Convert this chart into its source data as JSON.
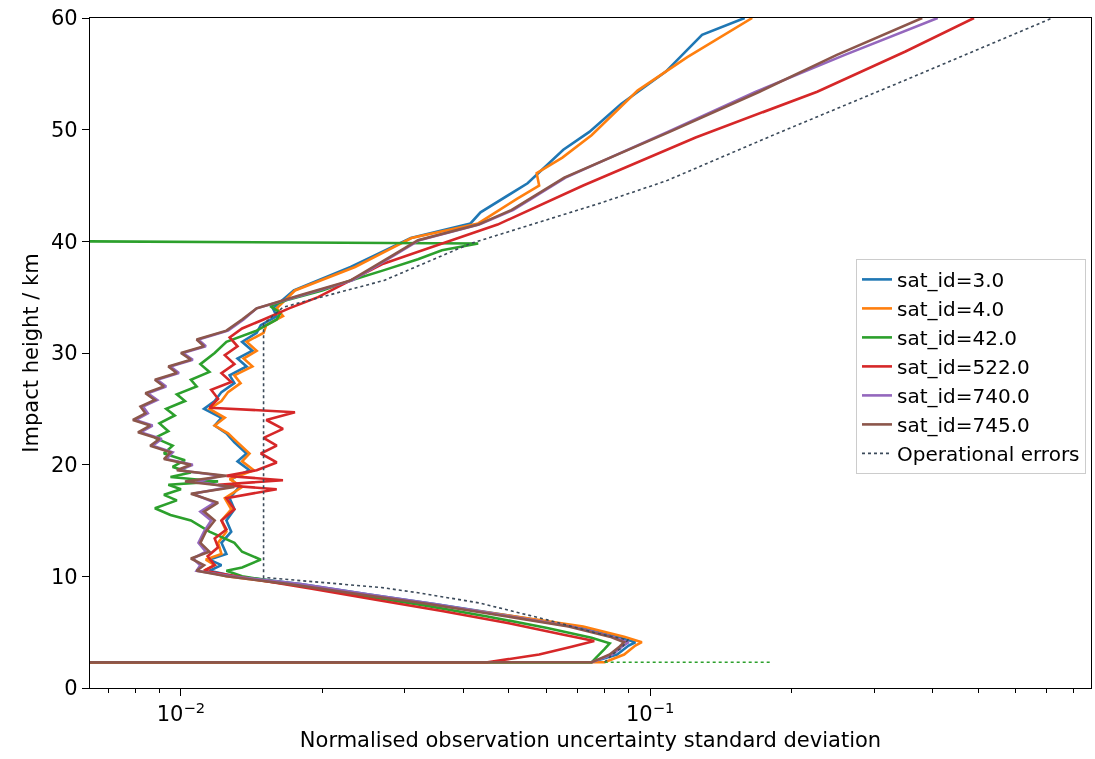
{
  "chart_data": {
    "type": "line",
    "xlabel": "Normalised observation uncertainty standard deviation",
    "ylabel": "Impact height / km",
    "log": "x",
    "xlim": [
      0.0064,
      0.87
    ],
    "ylim": [
      0,
      60
    ],
    "xticks": [
      {
        "value": 0.007,
        "label": null
      },
      {
        "value": 0.008,
        "label": null
      },
      {
        "value": 0.009,
        "label": null
      },
      {
        "value": 0.01,
        "label": "10$^{−2}$"
      },
      {
        "value": 0.02,
        "label": null
      },
      {
        "value": 0.03,
        "label": null
      },
      {
        "value": 0.04,
        "label": null
      },
      {
        "value": 0.05,
        "label": null
      },
      {
        "value": 0.06,
        "label": null
      },
      {
        "value": 0.07,
        "label": null
      },
      {
        "value": 0.08,
        "label": null
      },
      {
        "value": 0.09,
        "label": null
      },
      {
        "value": 0.1,
        "label": "10$^{−1}$"
      },
      {
        "value": 0.2,
        "label": null
      },
      {
        "value": 0.3,
        "label": null
      },
      {
        "value": 0.4,
        "label": null
      },
      {
        "value": 0.5,
        "label": null
      },
      {
        "value": 0.6,
        "label": null
      },
      {
        "value": 0.7,
        "label": null
      },
      {
        "value": 0.8,
        "label": null
      }
    ],
    "yticks": [
      0,
      10,
      20,
      30,
      40,
      50,
      60
    ],
    "grid": false,
    "legend": "right",
    "marker": "none",
    "series": [
      {
        "name": "sat_id=3.0",
        "color": "#1f77b4",
        "line_style": "solid",
        "x": [
          0.0064,
          0.075,
          0.085,
          0.09,
          0.093,
          0.085,
          0.07,
          0.05,
          0.035,
          0.025,
          0.018,
          0.013,
          0.0115,
          0.0122,
          0.0115,
          0.0125,
          0.0122,
          0.0128,
          0.0125,
          0.013,
          0.0127,
          0.0133,
          0.0128,
          0.014,
          0.0132,
          0.0138,
          0.013,
          0.0125,
          0.0118,
          0.0122,
          0.0112,
          0.0118,
          0.0122,
          0.013,
          0.0127,
          0.0138,
          0.0132,
          0.0142,
          0.0135,
          0.0145,
          0.0148,
          0.016,
          0.0157,
          0.0174,
          0.023,
          0.0309,
          0.0414,
          0.0435,
          0.0548,
          0.0653,
          0.0742,
          0.0867,
          0.108,
          0.129,
          0.159
        ],
        "values": [
          2.3,
          2.3,
          3.0,
          3.8,
          4.1,
          4.6,
          5.5,
          6.5,
          7.5,
          8.4,
          9.3,
          10.0,
          10.5,
          11,
          11.5,
          12,
          13,
          14,
          15,
          16,
          17,
          18,
          18.7,
          19.5,
          20.3,
          21,
          22,
          22.8,
          23.5,
          24.2,
          25,
          25.7,
          26.5,
          27.3,
          28,
          28.8,
          29.5,
          30.2,
          31,
          31.8,
          32.5,
          33.3,
          34,
          35.6,
          37.7,
          40.3,
          41.6,
          42.6,
          45.2,
          48.2,
          49.8,
          52.3,
          55.2,
          58.5,
          60
        ]
      },
      {
        "name": "sat_id=4.0",
        "color": "#ff7f0e",
        "line_style": "solid",
        "x": [
          0.0064,
          0.08,
          0.088,
          0.093,
          0.096,
          0.088,
          0.072,
          0.05,
          0.034,
          0.024,
          0.017,
          0.0125,
          0.0112,
          0.0118,
          0.0113,
          0.0122,
          0.012,
          0.0125,
          0.0122,
          0.0128,
          0.0124,
          0.0135,
          0.0127,
          0.0143,
          0.0135,
          0.014,
          0.0132,
          0.0126,
          0.0118,
          0.0124,
          0.0115,
          0.0122,
          0.0126,
          0.0134,
          0.013,
          0.0142,
          0.0136,
          0.0145,
          0.0138,
          0.015,
          0.0152,
          0.0165,
          0.016,
          0.0175,
          0.0235,
          0.031,
          0.043,
          0.052,
          0.058,
          0.0573,
          0.065,
          0.075,
          0.094,
          0.12,
          0.165
        ],
        "values": [
          2.3,
          2.3,
          3.0,
          3.8,
          4.1,
          4.6,
          5.5,
          6.5,
          7.5,
          8.4,
          9.3,
          10.0,
          10.5,
          11,
          11.5,
          12,
          13,
          14,
          15,
          16,
          17,
          18,
          18.7,
          19.5,
          20.3,
          21,
          22,
          22.8,
          23.5,
          24.2,
          25,
          25.7,
          26.5,
          27.3,
          28,
          28.8,
          29.5,
          30.2,
          31,
          31.8,
          32.5,
          33.3,
          34,
          35.6,
          37.7,
          40.3,
          41.6,
          43.8,
          45,
          46.1,
          47.5,
          49.5,
          53.5,
          56.5,
          60
        ]
      },
      {
        "name": "sat_id=42.0",
        "color": "#2ca02c",
        "line_style": "solid",
        "x": [
          0.0064,
          0.075,
          0.08,
          0.082,
          0.075,
          0.06,
          0.045,
          0.033,
          0.024,
          0.018,
          0.0135,
          0.0125,
          0.0135,
          0.0148,
          0.0135,
          0.013,
          0.0115,
          0.0105,
          0.0095,
          0.0088,
          0.0098,
          0.0092,
          0.01,
          0.0094,
          0.012,
          0.0095,
          0.0105,
          0.0096,
          0.0102,
          0.0092,
          0.0096,
          0.0088,
          0.0094,
          0.009,
          0.0097,
          0.0093,
          0.0102,
          0.0098,
          0.0108,
          0.0105,
          0.0115,
          0.011,
          0.0118,
          0.0125,
          0.0145,
          0.016,
          0.0163,
          0.0155,
          0.017,
          0.02,
          0.023,
          0.027,
          0.032,
          0.036,
          0.043,
          0.0064
        ],
        "values": [
          2.3,
          2.3,
          3.5,
          4.0,
          4.5,
          5.4,
          6.4,
          7.4,
          8.3,
          9.2,
          10.0,
          10.5,
          10.8,
          11.5,
          12.2,
          13,
          14,
          15,
          15.5,
          16.1,
          16.8,
          17.3,
          17.8,
          18.2,
          18.5,
          18.9,
          19.3,
          19.8,
          20.4,
          21,
          21.7,
          22.4,
          23,
          23.7,
          24.4,
          25,
          25.7,
          26.3,
          27,
          27.6,
          28.3,
          29,
          30,
          31,
          32,
          33,
          33.6,
          34.2,
          34.8,
          35.6,
          36.5,
          37.4,
          38.4,
          39.2,
          39.8,
          40.0
        ]
      },
      {
        "name": "sat_id=522.0",
        "color": "#d62728",
        "line_style": "solid",
        "x": [
          0.0064,
          0.045,
          0.058,
          0.068,
          0.076,
          0.065,
          0.05,
          0.036,
          0.026,
          0.019,
          0.014,
          0.0112,
          0.0118,
          0.0114,
          0.012,
          0.0118,
          0.0125,
          0.0122,
          0.013,
          0.0125,
          0.016,
          0.012,
          0.0165,
          0.0125,
          0.0145,
          0.016,
          0.0148,
          0.016,
          0.015,
          0.0165,
          0.0152,
          0.0175,
          0.0115,
          0.012,
          0.0116,
          0.0128,
          0.0122,
          0.013,
          0.0124,
          0.0132,
          0.0127,
          0.0135,
          0.015,
          0.017,
          0.0196,
          0.027,
          0.0473,
          0.072,
          0.125,
          0.227,
          0.35,
          0.49
        ],
        "values": [
          2.3,
          2.3,
          3.0,
          3.7,
          4.2,
          4.8,
          5.8,
          6.9,
          7.9,
          8.9,
          9.8,
          10.5,
          11,
          11.8,
          12.6,
          13.4,
          14.2,
          15,
          16,
          17,
          17.8,
          18.2,
          18.6,
          19,
          19.5,
          20.2,
          21,
          21.7,
          22.4,
          23.2,
          24,
          24.7,
          25.1,
          25.9,
          26.7,
          27.4,
          28.2,
          29,
          29.8,
          30.6,
          31.4,
          32.2,
          33,
          34,
          35,
          38,
          41.5,
          45,
          49.3,
          53.4,
          57,
          60
        ]
      },
      {
        "name": "sat_id=740.0",
        "color": "#9467bd",
        "line_style": "solid",
        "x": [
          0.075,
          0.083,
          0.087,
          0.09,
          0.083,
          0.068,
          0.049,
          0.035,
          0.025,
          0.018,
          0.0128,
          0.0108,
          0.011,
          0.0106,
          0.0113,
          0.0109,
          0.0112,
          0.0116,
          0.011,
          0.0118,
          0.0106,
          0.0127,
          0.0108,
          0.0122,
          0.0099,
          0.0106,
          0.0093,
          0.0096,
          0.0087,
          0.0091,
          0.0082,
          0.0087,
          0.008,
          0.0085,
          0.0083,
          0.0089,
          0.0085,
          0.0093,
          0.0089,
          0.0099,
          0.0095,
          0.0106,
          0.0101,
          0.0113,
          0.0109,
          0.0126,
          0.0136,
          0.0145,
          0.0182,
          0.0232,
          0.0322,
          0.0432,
          0.051,
          0.066,
          0.109,
          0.168,
          0.26,
          0.41
        ],
        "values": [
          2.3,
          3.0,
          3.7,
          4.1,
          4.6,
          5.5,
          6.5,
          7.5,
          8.4,
          9.3,
          10.0,
          10.5,
          11,
          11.6,
          12.2,
          13,
          14,
          15,
          15.8,
          16.6,
          17.4,
          18,
          18.5,
          19,
          19.5,
          20,
          20.5,
          21.1,
          21.7,
          22.3,
          22.9,
          23.5,
          24,
          24.6,
          25.2,
          25.8,
          26.4,
          27,
          27.6,
          28.2,
          28.8,
          29.4,
          30,
          30.6,
          31.2,
          32,
          33,
          34,
          35.2,
          36.5,
          40.1,
          41.5,
          42.8,
          45.7,
          49.8,
          53.4,
          56.7,
          60
        ]
      },
      {
        "name": "sat_id=745.0",
        "color": "#8c564b",
        "line_style": "solid",
        "x": [
          0.0064,
          0.075,
          0.082,
          0.086,
          0.088,
          0.082,
          0.067,
          0.048,
          0.034,
          0.024,
          0.017,
          0.0125,
          0.0108,
          0.0112,
          0.0105,
          0.0115,
          0.011,
          0.0113,
          0.0118,
          0.0112,
          0.012,
          0.0105,
          0.013,
          0.0102,
          0.0125,
          0.0098,
          0.0105,
          0.0092,
          0.0095,
          0.0086,
          0.009,
          0.0081,
          0.0086,
          0.0079,
          0.0084,
          0.0082,
          0.0088,
          0.0084,
          0.0092,
          0.0088,
          0.0098,
          0.0094,
          0.0105,
          0.01,
          0.0112,
          0.0108,
          0.0125,
          0.0135,
          0.0145,
          0.018,
          0.023,
          0.032,
          0.043,
          0.0506,
          0.0656,
          0.11,
          0.171,
          0.25,
          0.38
        ],
        "values": [
          2.3,
          2.3,
          3.0,
          3.7,
          4.1,
          4.6,
          5.5,
          6.5,
          7.5,
          8.4,
          9.3,
          10.0,
          10.5,
          11,
          11.6,
          12.2,
          13,
          14,
          15,
          15.8,
          16.6,
          17.4,
          18,
          18.5,
          19,
          19.5,
          20,
          20.5,
          21.1,
          21.7,
          22.3,
          22.9,
          23.5,
          24,
          24.6,
          25.2,
          25.8,
          26.4,
          27,
          27.6,
          28.2,
          28.8,
          29.4,
          30,
          30.6,
          31.2,
          32,
          33,
          34,
          35.2,
          36.5,
          40.1,
          41.5,
          42.8,
          45.7,
          49.8,
          53.4,
          56.7,
          60
        ]
      },
      {
        "name": "Operational errors",
        "color": "#3b4a5a",
        "line_style": "dotted",
        "x": [
          0.08,
          0.083,
          0.087,
          0.0896,
          0.0771,
          0.0604,
          0.0434,
          0.0324,
          0.0267,
          0.015,
          0.015,
          0.0165,
          0.0271,
          0.0414,
          0.078,
          0.108,
          0.185,
          0.339,
          0.72
        ],
        "values": [
          2.3,
          3.0,
          3.6,
          4.3,
          4.9,
          6.1,
          7.6,
          8.5,
          9.0,
          9.9,
          32.6,
          34.1,
          36.5,
          39.8,
          43.4,
          45.4,
          49.6,
          54.2,
          60
        ]
      },
      {
        "color": "#2ca02c",
        "line_style": "dotted",
        "x": [
          0.08,
          0.18
        ],
        "values": [
          2.3,
          2.3
        ]
      }
    ]
  }
}
